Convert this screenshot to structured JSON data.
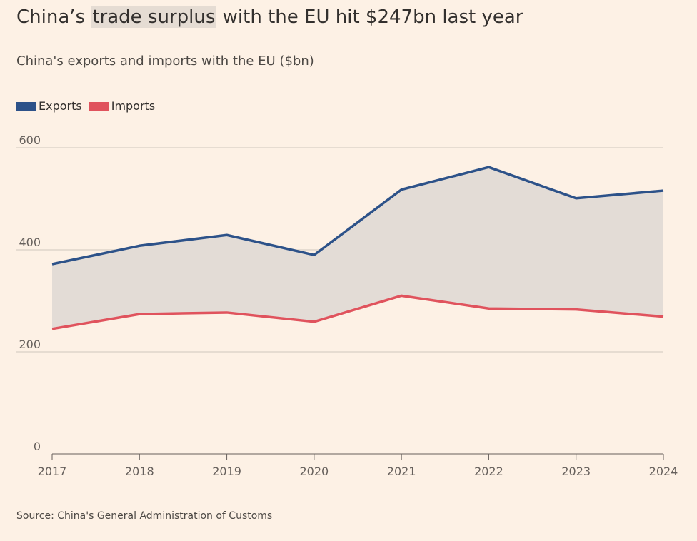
{
  "header": {
    "title_prefix": "China’s ",
    "title_highlight": "trade surplus",
    "title_suffix": " with the EU hit $247bn last year",
    "subtitle": "China's exports and imports with the EU ($bn)"
  },
  "legend": {
    "exports_label": "Exports",
    "imports_label": "Imports"
  },
  "source": "Source: China's General Administration of Customs",
  "colors": {
    "exports": "#2d5289",
    "imports": "#e0535d",
    "fill": "#e3dcd6",
    "grid": "#cfc6bd",
    "axis": "#66605c",
    "highlight": "#e5dcd3"
  },
  "chart_data": {
    "type": "area",
    "x": [
      2017,
      2018,
      2019,
      2020,
      2021,
      2022,
      2023,
      2024
    ],
    "series": [
      {
        "name": "Exports",
        "values": [
          372,
          408,
          429,
          390,
          518,
          562,
          501,
          516
        ]
      },
      {
        "name": "Imports",
        "values": [
          245,
          274,
          277,
          259,
          310,
          285,
          283,
          269
        ]
      }
    ],
    "yticks": [
      0,
      200,
      400,
      600
    ],
    "xticks": [
      "2017",
      "2018",
      "2019",
      "2020",
      "2021",
      "2022",
      "2023",
      "2024"
    ],
    "ylim": [
      0,
      600
    ],
    "grid": true,
    "legend_position": "top-left"
  }
}
